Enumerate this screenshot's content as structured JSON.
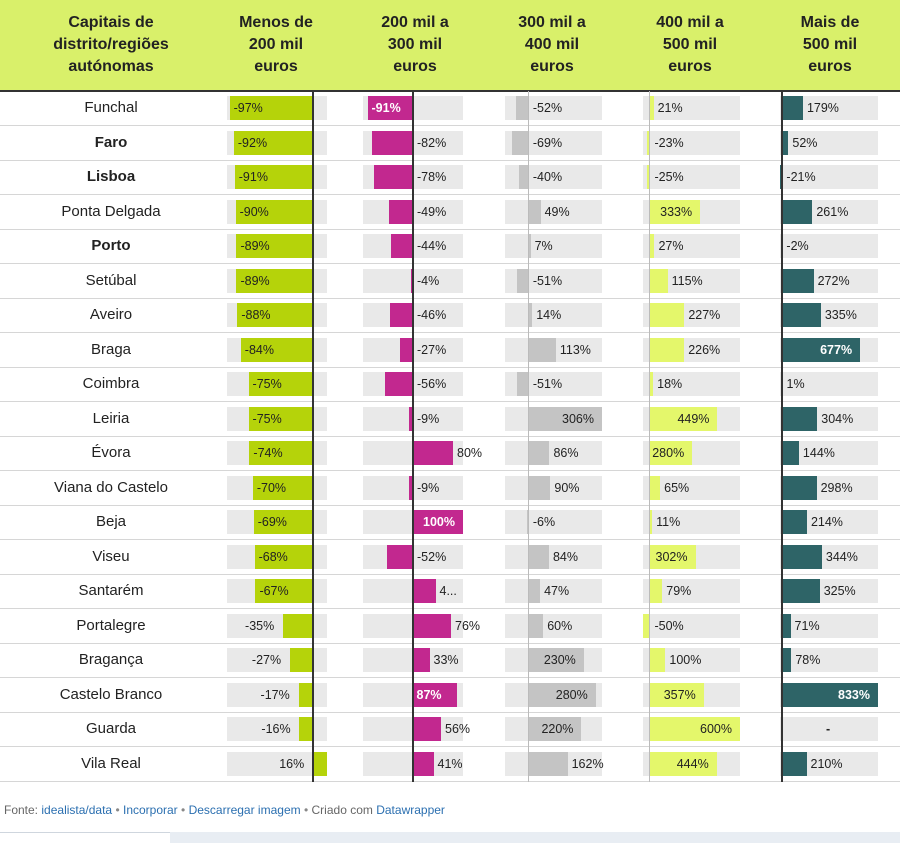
{
  "header": {
    "city_col": "Capitais de\ndistrito/regiões\nautónomas",
    "col1": "Menos de\n200 mil\neuros",
    "col2": "200 mil a\n300 mil\neuros",
    "col3": "300 mil a\n400 mil\neuros",
    "col4": "400 mil a\n500 mil\neuros",
    "col5": "Mais de\n500 mil\neuros"
  },
  "colors": {
    "header_bg": "#d9f06a",
    "col1": "#b5d30a",
    "col2": "#c2288f",
    "col3": "#c4c4c4",
    "col4": "#e4f76b",
    "col5": "#2e6467",
    "track": "#e9e9e9"
  },
  "chart_data": {
    "type": "table",
    "title": "",
    "columns": [
      "Menos de 200 mil euros",
      "200 mil a 300 mil euros",
      "300 mil a 400 mil euros",
      "400 mil a 500 mil euros",
      "Mais de 500 mil euros"
    ],
    "unit": "%",
    "rows": [
      {
        "city": "Funchal",
        "bold": false,
        "values": [
          -97,
          -91,
          -52,
          21,
          179
        ],
        "labels": [
          "-97%",
          "-91%",
          "-52%",
          "21%",
          "179%"
        ]
      },
      {
        "city": "Faro",
        "bold": true,
        "values": [
          -92,
          -82,
          -69,
          -23,
          52
        ],
        "labels": [
          "-92%",
          "-82%",
          "-69%",
          "-23%",
          "52%"
        ]
      },
      {
        "city": "Lisboa",
        "bold": true,
        "values": [
          -91,
          -78,
          -40,
          -25,
          -21
        ],
        "labels": [
          "-91%",
          "-78%",
          "-40%",
          "-25%",
          "-21%"
        ]
      },
      {
        "city": "Ponta Delgada",
        "bold": false,
        "values": [
          -90,
          -49,
          49,
          333,
          261
        ],
        "labels": [
          "-90%",
          "-49%",
          "49%",
          "333%",
          "261%"
        ]
      },
      {
        "city": "Porto",
        "bold": true,
        "values": [
          -89,
          -44,
          7,
          27,
          -2
        ],
        "labels": [
          "-89%",
          "-44%",
          "7%",
          "27%",
          "-2%"
        ]
      },
      {
        "city": "Setúbal",
        "bold": false,
        "values": [
          -89,
          -4,
          -51,
          115,
          272
        ],
        "labels": [
          "-89%",
          "-4%",
          "-51%",
          "115%",
          "272%"
        ]
      },
      {
        "city": "Aveiro",
        "bold": false,
        "values": [
          -88,
          -46,
          14,
          227,
          335
        ],
        "labels": [
          "-88%",
          "-46%",
          "14%",
          "227%",
          "335%"
        ]
      },
      {
        "city": "Braga",
        "bold": false,
        "values": [
          -84,
          -27,
          113,
          226,
          677
        ],
        "labels": [
          "-84%",
          "-27%",
          "113%",
          "226%",
          "677%"
        ]
      },
      {
        "city": "Coimbra",
        "bold": false,
        "values": [
          -75,
          -56,
          -51,
          18,
          1
        ],
        "labels": [
          "-75%",
          "-56%",
          "-51%",
          "18%",
          "1%"
        ]
      },
      {
        "city": "Leiria",
        "bold": false,
        "values": [
          -75,
          -9,
          306,
          449,
          304
        ],
        "labels": [
          "-75%",
          "-9%",
          "306%",
          "449%",
          "304%"
        ]
      },
      {
        "city": "Évora",
        "bold": false,
        "values": [
          -74,
          80,
          86,
          280,
          144
        ],
        "labels": [
          "-74%",
          "80%",
          "86%",
          "280%",
          "144%"
        ]
      },
      {
        "city": "Viana do Castelo",
        "bold": false,
        "values": [
          -70,
          -9,
          90,
          65,
          298
        ],
        "labels": [
          "-70%",
          "-9%",
          "90%",
          "65%",
          "298%"
        ]
      },
      {
        "city": "Beja",
        "bold": false,
        "values": [
          -69,
          100,
          -6,
          11,
          214
        ],
        "labels": [
          "-69%",
          "100%",
          "-6%",
          "11%",
          "214%"
        ]
      },
      {
        "city": "Viseu",
        "bold": false,
        "values": [
          -68,
          -52,
          84,
          302,
          344
        ],
        "labels": [
          "-68%",
          "-52%",
          "84%",
          "302%",
          "344%"
        ]
      },
      {
        "city": "Santarém",
        "bold": false,
        "values": [
          -67,
          45,
          47,
          79,
          325
        ],
        "labels": [
          "-67%",
          "4...",
          "47%",
          "79%",
          "325%"
        ]
      },
      {
        "city": "Portalegre",
        "bold": false,
        "values": [
          -35,
          76,
          60,
          -50,
          71
        ],
        "labels": [
          "-35%",
          "76%",
          "60%",
          "-50%",
          "71%"
        ]
      },
      {
        "city": "Bragança",
        "bold": false,
        "values": [
          -27,
          33,
          230,
          100,
          78
        ],
        "labels": [
          "-27%",
          "33%",
          "230%",
          "100%",
          "78%"
        ]
      },
      {
        "city": "Castelo Branco",
        "bold": false,
        "values": [
          -17,
          87,
          280,
          357,
          833
        ],
        "labels": [
          "-17%",
          "87%",
          "280%",
          "357%",
          "833%"
        ]
      },
      {
        "city": "Guarda",
        "bold": false,
        "values": [
          -16,
          56,
          220,
          600,
          null
        ],
        "labels": [
          "-16%",
          "56%",
          "220%",
          "600%",
          "-"
        ]
      },
      {
        "city": "Vila Real",
        "bold": false,
        "values": [
          16,
          41,
          162,
          444,
          210
        ],
        "labels": [
          "16%",
          "41%",
          "162%",
          "444%",
          "210%"
        ]
      }
    ]
  },
  "footer": {
    "prefix": "Fonte:",
    "source_link": "idealista/data",
    "sep1": "•",
    "embed_link": "Incorporar",
    "sep2": "•",
    "download_link": "Descarregar imagem",
    "sep3": "•",
    "created_with": "Criado com",
    "tool_link": "Datawrapper"
  }
}
